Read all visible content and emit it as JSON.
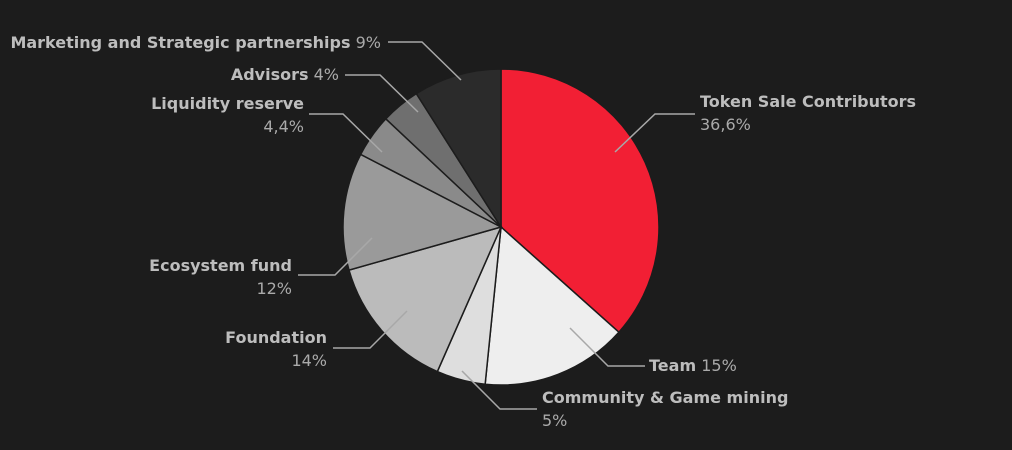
{
  "chart_data": {
    "type": "pie",
    "title": "",
    "start_angle_deg": 0,
    "direction": "clockwise",
    "slices": [
      {
        "name": "Token Sale Contributors",
        "value": 36.6,
        "label": "36,6%",
        "color": "#f21f34"
      },
      {
        "name": "Team",
        "value": 15,
        "label": "15%",
        "color": "#eeeeee"
      },
      {
        "name": "Community & Game mining",
        "value": 5,
        "label": "5%",
        "color": "#dedede"
      },
      {
        "name": "Foundation",
        "value": 14,
        "label": "14%",
        "color": "#bbbbbb"
      },
      {
        "name": "Ecosystem fund",
        "value": 12,
        "label": "12%",
        "color": "#9a9a9a"
      },
      {
        "name": "Liquidity reserve",
        "value": 4.4,
        "label": "4,4%",
        "color": "#8a8a8a"
      },
      {
        "name": "Advisors",
        "value": 4,
        "label": "4%",
        "color": "#6f6f6f"
      },
      {
        "name": "Marketing and Strategic partnerships",
        "value": 9,
        "label": "9%",
        "color": "#2b2b2b"
      }
    ]
  }
}
